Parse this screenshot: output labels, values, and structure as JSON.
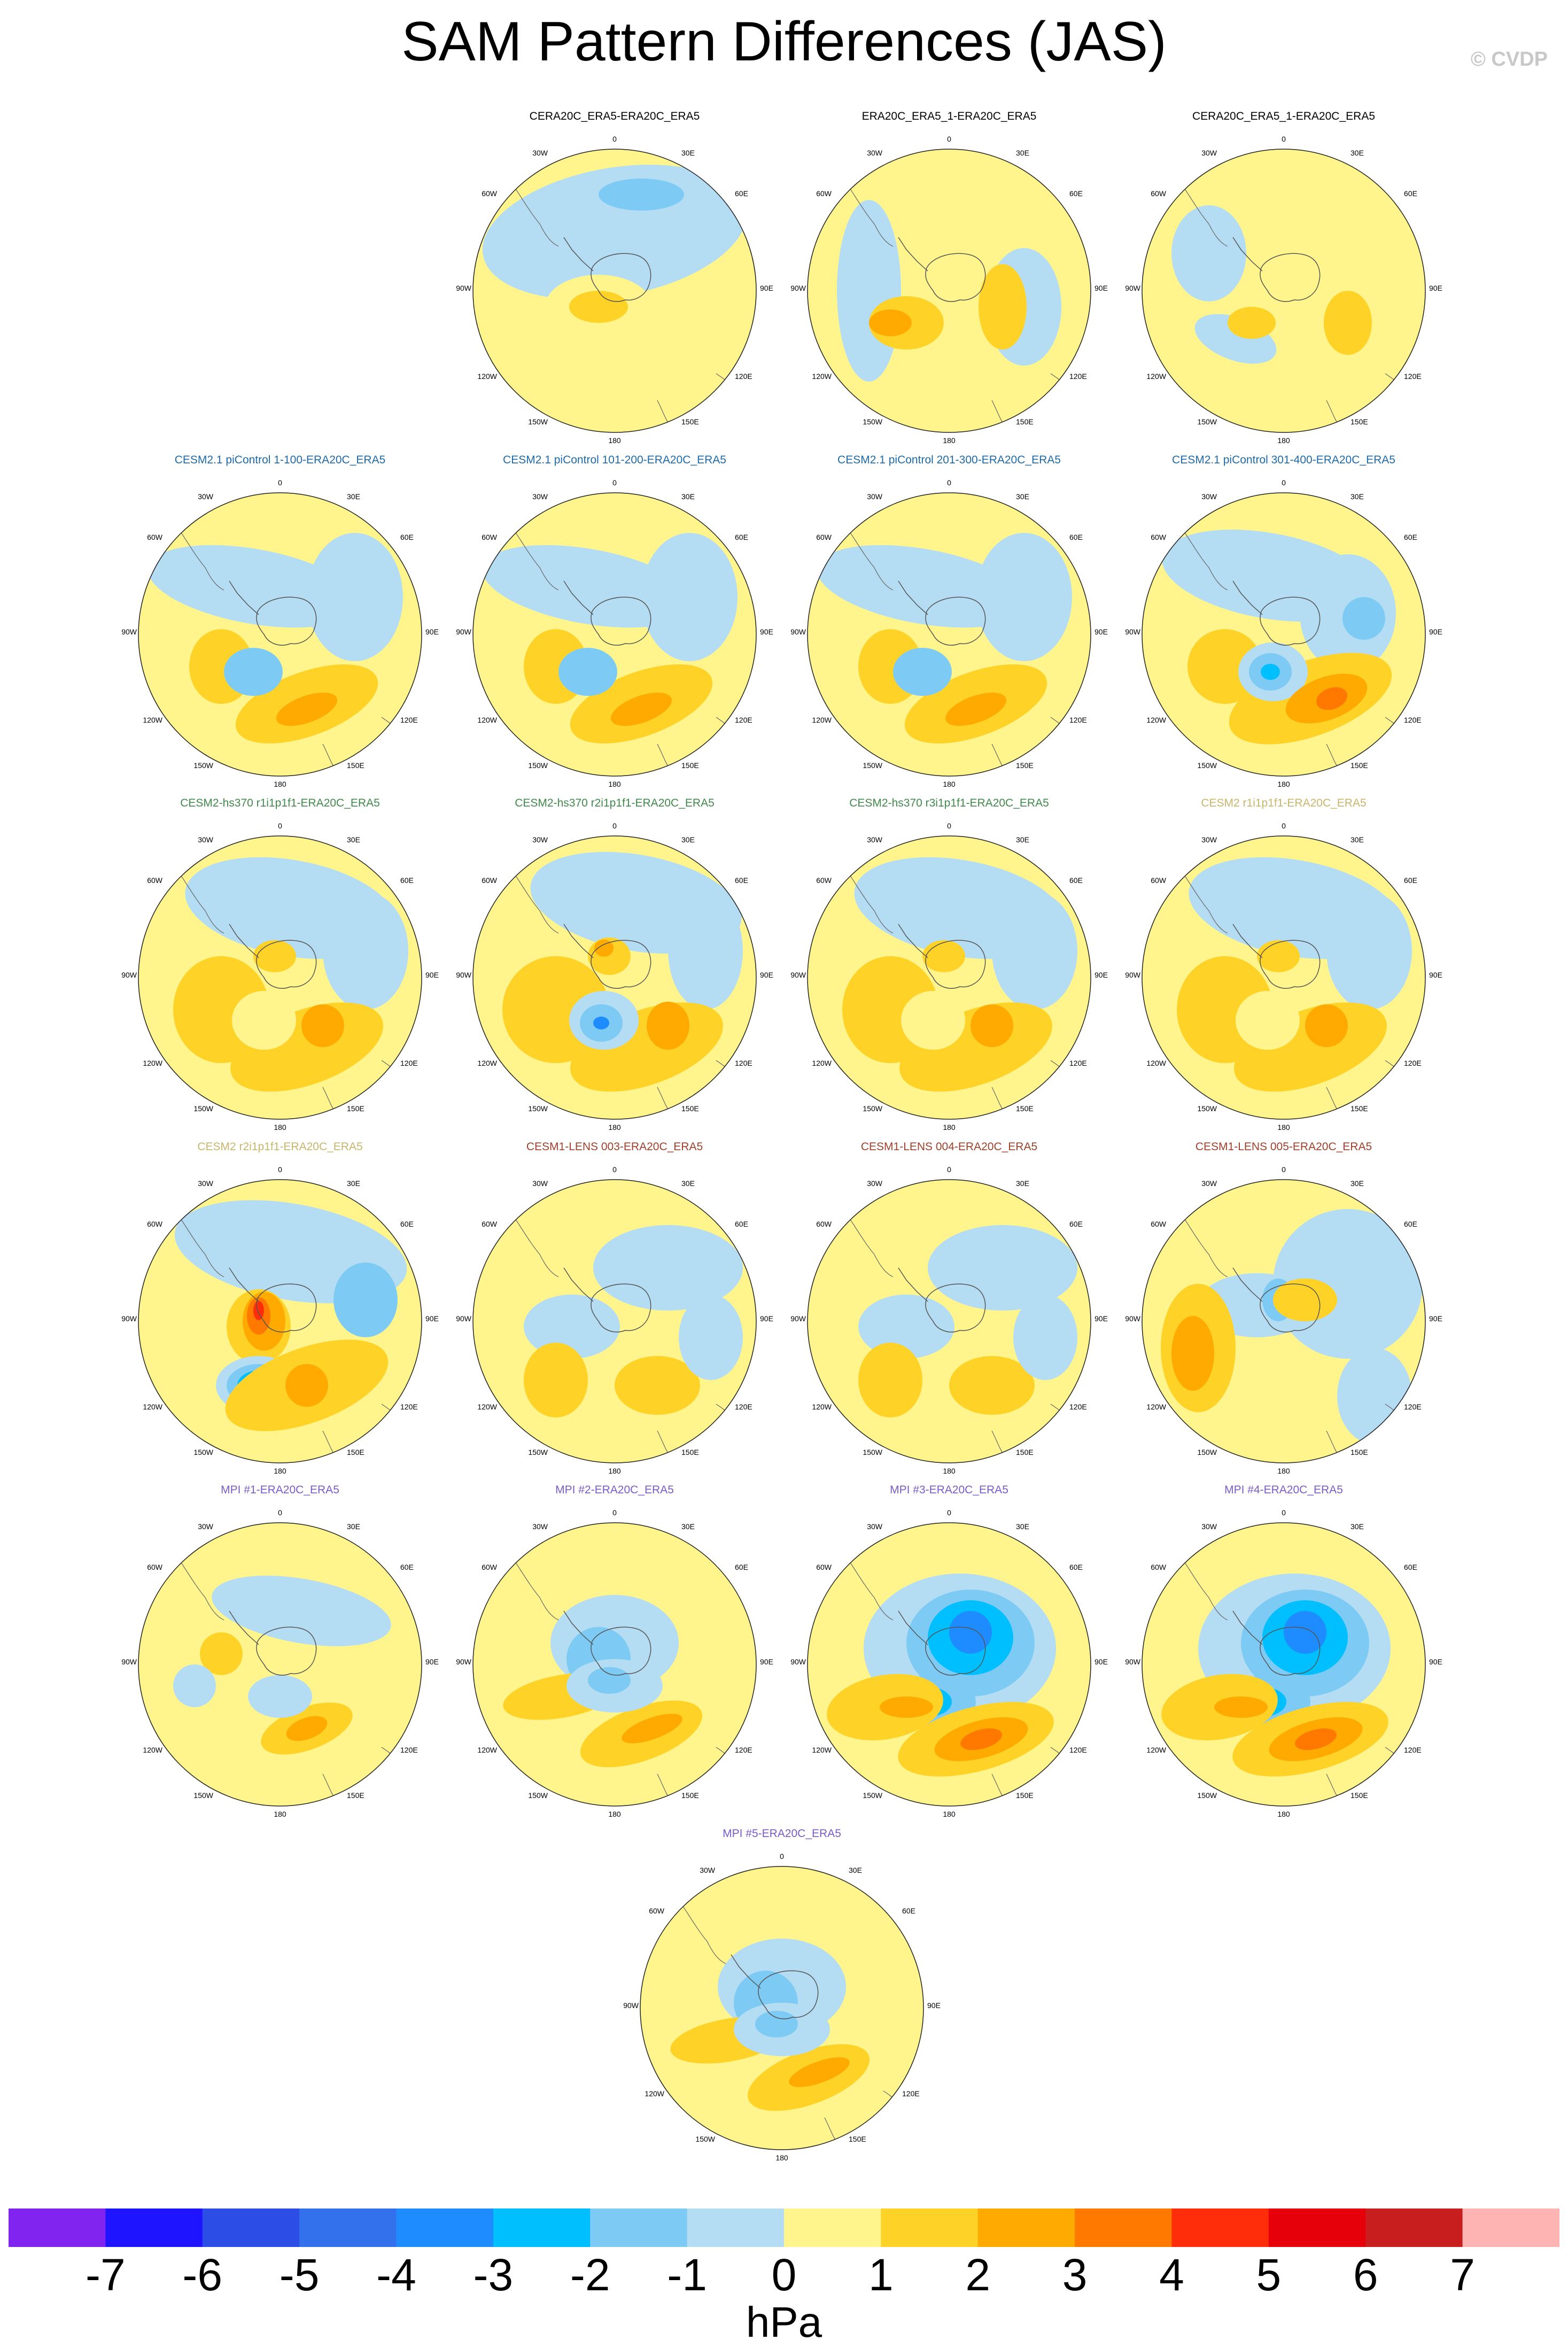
{
  "title": "SAM Pattern Differences (JAS)",
  "credit": "© CVDP",
  "map_labels": {
    "top": "0",
    "r30": "30E",
    "r60": "60E",
    "r90": "90E",
    "r120": "120E",
    "r150": "150E",
    "bottom": "180",
    "l150": "150W",
    "l120": "120W",
    "l90": "90W",
    "l60": "60W",
    "l30": "30W"
  },
  "panels": [
    {
      "title": "CERA20C_ERA5-ERA20C_ERA5",
      "color": "#000000",
      "pattern": "neutral-blue"
    },
    {
      "title": "ERA20C_ERA5_1-ERA20C_ERA5",
      "color": "#000000",
      "pattern": "warm-core"
    },
    {
      "title": "CERA20C_ERA5_1-ERA20C_ERA5",
      "color": "#000000",
      "pattern": "warm-weak"
    },
    {
      "title": "CESM2.1 piControl 1-100-ERA20C_ERA5",
      "color": "#1e6aa8",
      "pattern": "cesm21"
    },
    {
      "title": "CESM2.1 piControl 101-200-ERA20C_ERA5",
      "color": "#1e6aa8",
      "pattern": "cesm21"
    },
    {
      "title": "CESM2.1 piControl 201-300-ERA20C_ERA5",
      "color": "#1e6aa8",
      "pattern": "cesm21"
    },
    {
      "title": "CESM2.1 piControl 301-400-ERA20C_ERA5",
      "color": "#1e6aa8",
      "pattern": "cesm21-strong"
    },
    {
      "title": "CESM2-hs370 r1i1p1f1-ERA20C_ERA5",
      "color": "#3f8a4a",
      "pattern": "hs370"
    },
    {
      "title": "CESM2-hs370 r2i1p1f1-ERA20C_ERA5",
      "color": "#3f8a4a",
      "pattern": "hs370-strong"
    },
    {
      "title": "CESM2-hs370 r3i1p1f1-ERA20C_ERA5",
      "color": "#3f8a4a",
      "pattern": "hs370"
    },
    {
      "title": "CESM2 r1i1p1f1-ERA20C_ERA5",
      "color": "#c9b56a",
      "pattern": "hs370"
    },
    {
      "title": "CESM2 r2i1p1f1-ERA20C_ERA5",
      "color": "#c9b56a",
      "pattern": "cesm2-r2"
    },
    {
      "title": "CESM1-LENS 003-ERA20C_ERA5",
      "color": "#a0402a",
      "pattern": "lens-weak"
    },
    {
      "title": "CESM1-LENS 004-ERA20C_ERA5",
      "color": "#a0402a",
      "pattern": "lens-weak"
    },
    {
      "title": "CESM1-LENS 005-ERA20C_ERA5",
      "color": "#a0402a",
      "pattern": "lens-005"
    },
    {
      "title": "MPI #1-ERA20C_ERA5",
      "color": "#7a5bc7",
      "pattern": "mpi-weak"
    },
    {
      "title": "MPI #2-ERA20C_ERA5",
      "color": "#7a5bc7",
      "pattern": "mpi"
    },
    {
      "title": "MPI #3-ERA20C_ERA5",
      "color": "#7a5bc7",
      "pattern": "mpi-strong"
    },
    {
      "title": "MPI #4-ERA20C_ERA5",
      "color": "#7a5bc7",
      "pattern": "mpi-strong"
    },
    {
      "title": "MPI #5-ERA20C_ERA5",
      "color": "#7a5bc7",
      "pattern": "mpi"
    }
  ],
  "colorbar": {
    "unit": "hPa",
    "labels": [
      "-7",
      "-6",
      "-5",
      "-4",
      "-3",
      "-2",
      "-1",
      "0",
      "1",
      "2",
      "3",
      "4",
      "5",
      "6",
      "7"
    ],
    "colors": [
      "#8224f0",
      "#1e14ff",
      "#2d4ee6",
      "#3271eb",
      "#1e8cff",
      "#00bfff",
      "#7dcbf5",
      "#b4dcf2",
      "#fff58c",
      "#ffd228",
      "#ffaa00",
      "#ff7800",
      "#ff2d0a",
      "#e6000a",
      "#c81e1e",
      "#ffb4b4"
    ]
  }
}
